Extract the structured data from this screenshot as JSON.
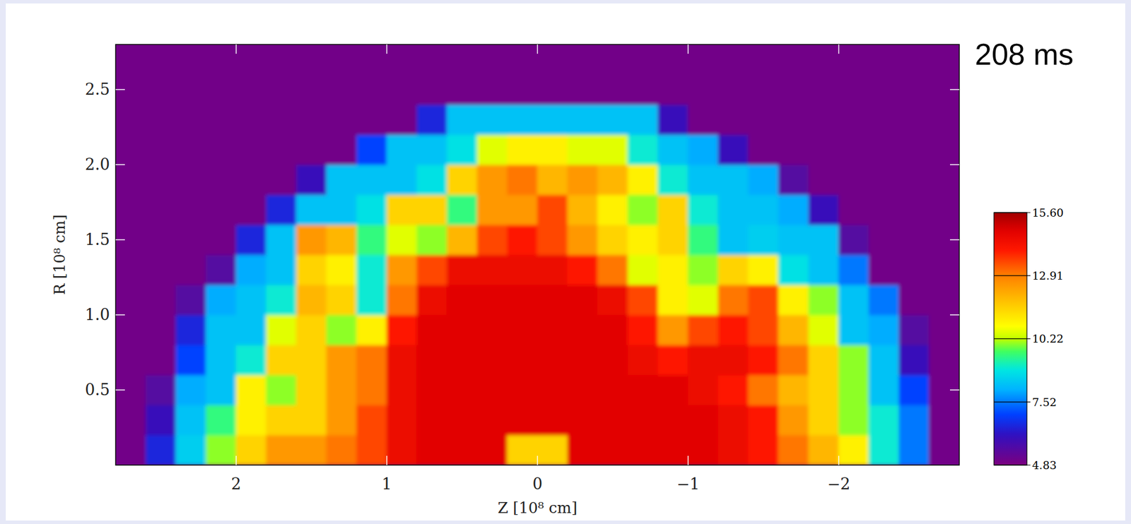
{
  "chart_data": {
    "type": "heatmap",
    "title": "208 ms",
    "x_label": "Z [10⁸ cm]",
    "y_label": "R [10⁸ cm]",
    "xlim": [
      2.8,
      -2.8
    ],
    "ylim": [
      0,
      2.8
    ],
    "xticks": [
      2,
      1,
      0,
      {
        "value": -1,
        "label": "−1"
      },
      {
        "value": -2,
        "label": "−2"
      }
    ],
    "yticks": [
      0.5,
      {
        "value": 1.0,
        "label": "1.0"
      },
      1.5,
      {
        "value": 2.0,
        "label": "2.0"
      },
      2.5
    ],
    "x": [
      2.7,
      2.5,
      2.3,
      2.1,
      1.9,
      1.7,
      1.5,
      1.3,
      1.1,
      0.9,
      0.7,
      0.5,
      0.3,
      0.1,
      -0.1,
      -0.3,
      -0.5,
      -0.7,
      -0.9,
      -1.1,
      -1.3,
      -1.5,
      -1.7,
      -1.9,
      -2.1,
      -2.3,
      -2.5,
      -2.7
    ],
    "y": [
      0.1,
      0.3,
      0.5,
      0.7,
      0.9,
      1.1,
      1.3,
      1.5,
      1.7,
      1.9,
      2.1,
      2.3,
      2.5,
      2.7
    ],
    "values": [
      [
        5.0,
        6.5,
        8.5,
        10.0,
        11.5,
        12.5,
        12.5,
        13.0,
        13.5,
        14.5,
        14.8,
        14.8,
        14.8,
        11.5,
        11.5,
        14.8,
        14.8,
        14.8,
        14.8,
        14.8,
        14.5,
        14.0,
        13.0,
        12.0,
        11.0,
        9.0,
        7.5,
        5.0
      ],
      [
        5.0,
        6.0,
        8.3,
        9.5,
        11.0,
        11.5,
        11.5,
        12.5,
        13.5,
        14.5,
        14.8,
        14.8,
        14.8,
        14.8,
        14.8,
        14.8,
        14.8,
        14.8,
        14.8,
        14.8,
        14.5,
        14.0,
        12.5,
        11.5,
        10.0,
        9.0,
        7.5,
        5.0
      ],
      [
        5.0,
        5.5,
        8.0,
        8.3,
        11.0,
        10.0,
        11.5,
        12.5,
        13.0,
        14.5,
        14.8,
        14.8,
        14.8,
        14.8,
        14.8,
        14.8,
        14.8,
        14.8,
        14.8,
        14.5,
        14.0,
        13.0,
        12.0,
        11.5,
        10.0,
        8.3,
        7.0,
        5.0
      ],
      [
        5.0,
        5.0,
        7.0,
        8.3,
        9.0,
        11.5,
        11.5,
        12.5,
        13.0,
        14.5,
        14.8,
        14.8,
        14.8,
        14.8,
        14.8,
        14.8,
        14.8,
        14.5,
        14.0,
        14.5,
        14.5,
        14.0,
        13.0,
        11.5,
        10.0,
        8.3,
        6.0,
        5.0
      ],
      [
        5.0,
        5.0,
        6.5,
        8.3,
        8.3,
        10.5,
        11.5,
        10.0,
        11.0,
        14.0,
        14.8,
        14.8,
        14.8,
        14.8,
        14.8,
        14.8,
        14.8,
        14.0,
        12.5,
        13.5,
        14.0,
        13.5,
        12.0,
        10.5,
        8.3,
        8.0,
        5.5,
        5.0
      ],
      [
        5.0,
        5.0,
        5.5,
        8.0,
        8.3,
        9.0,
        12.0,
        11.5,
        9.0,
        13.0,
        14.5,
        14.8,
        14.8,
        14.8,
        14.8,
        14.8,
        14.5,
        13.5,
        11.0,
        10.5,
        13.0,
        13.5,
        11.0,
        10.0,
        8.3,
        7.5,
        5.0,
        5.0
      ],
      [
        5.0,
        5.0,
        5.0,
        5.5,
        8.0,
        8.3,
        11.5,
        11.0,
        9.0,
        12.5,
        13.5,
        14.5,
        14.5,
        14.5,
        14.5,
        14.0,
        13.0,
        10.5,
        11.0,
        10.0,
        11.5,
        11.0,
        8.8,
        8.3,
        7.5,
        5.0,
        5.0,
        5.0
      ],
      [
        5.0,
        5.0,
        5.0,
        5.0,
        6.5,
        8.3,
        12.5,
        12.0,
        9.5,
        10.5,
        10.0,
        12.0,
        13.5,
        14.0,
        13.5,
        12.5,
        11.5,
        11.0,
        11.5,
        9.5,
        8.3,
        8.5,
        8.3,
        8.3,
        5.5,
        5.0,
        5.0,
        5.0
      ],
      [
        5.0,
        5.0,
        5.0,
        5.0,
        5.0,
        6.5,
        8.3,
        8.3,
        8.8,
        11.5,
        11.5,
        9.5,
        12.5,
        12.5,
        13.5,
        12.0,
        11.0,
        10.0,
        11.5,
        9.0,
        8.3,
        8.3,
        8.0,
        6.0,
        5.0,
        5.0,
        5.0,
        5.0
      ],
      [
        5.0,
        5.0,
        5.0,
        5.0,
        5.0,
        5.0,
        6.0,
        8.3,
        8.3,
        8.3,
        8.8,
        11.5,
        12.5,
        13.0,
        12.0,
        12.5,
        12.0,
        11.0,
        9.0,
        8.3,
        8.3,
        8.0,
        5.5,
        5.0,
        5.0,
        5.0,
        5.0,
        5.0
      ],
      [
        5.0,
        5.0,
        5.0,
        5.0,
        5.0,
        5.0,
        5.0,
        5.0,
        7.0,
        8.3,
        8.3,
        8.8,
        10.5,
        11.0,
        11.0,
        10.5,
        10.5,
        9.0,
        8.3,
        8.0,
        6.0,
        5.0,
        5.0,
        5.0,
        5.0,
        5.0,
        5.0,
        5.0
      ],
      [
        5.0,
        5.0,
        5.0,
        5.0,
        5.0,
        5.0,
        5.0,
        5.0,
        5.0,
        5.0,
        6.5,
        8.3,
        8.3,
        8.3,
        8.3,
        8.3,
        8.3,
        8.3,
        6.0,
        5.0,
        5.0,
        5.0,
        5.0,
        5.0,
        5.0,
        5.0,
        5.0,
        5.0
      ],
      [
        5.0,
        5.0,
        5.0,
        5.0,
        5.0,
        5.0,
        5.0,
        5.0,
        5.0,
        5.0,
        5.0,
        5.0,
        5.0,
        5.0,
        5.0,
        5.0,
        5.0,
        5.0,
        5.0,
        5.0,
        5.0,
        5.0,
        5.0,
        5.0,
        5.0,
        5.0,
        5.0,
        5.0
      ],
      [
        5.0,
        5.0,
        5.0,
        5.0,
        5.0,
        5.0,
        5.0,
        5.0,
        5.0,
        5.0,
        5.0,
        5.0,
        5.0,
        5.0,
        5.0,
        5.0,
        5.0,
        5.0,
        5.0,
        5.0,
        5.0,
        5.0,
        5.0,
        5.0,
        5.0,
        5.0,
        5.0,
        5.0
      ]
    ],
    "colorbar": {
      "range": [
        4.83,
        15.6
      ],
      "ticks": [
        {
          "value": 15.6,
          "label": "15.60"
        },
        12.91,
        10.22,
        7.52,
        4.83
      ]
    }
  }
}
